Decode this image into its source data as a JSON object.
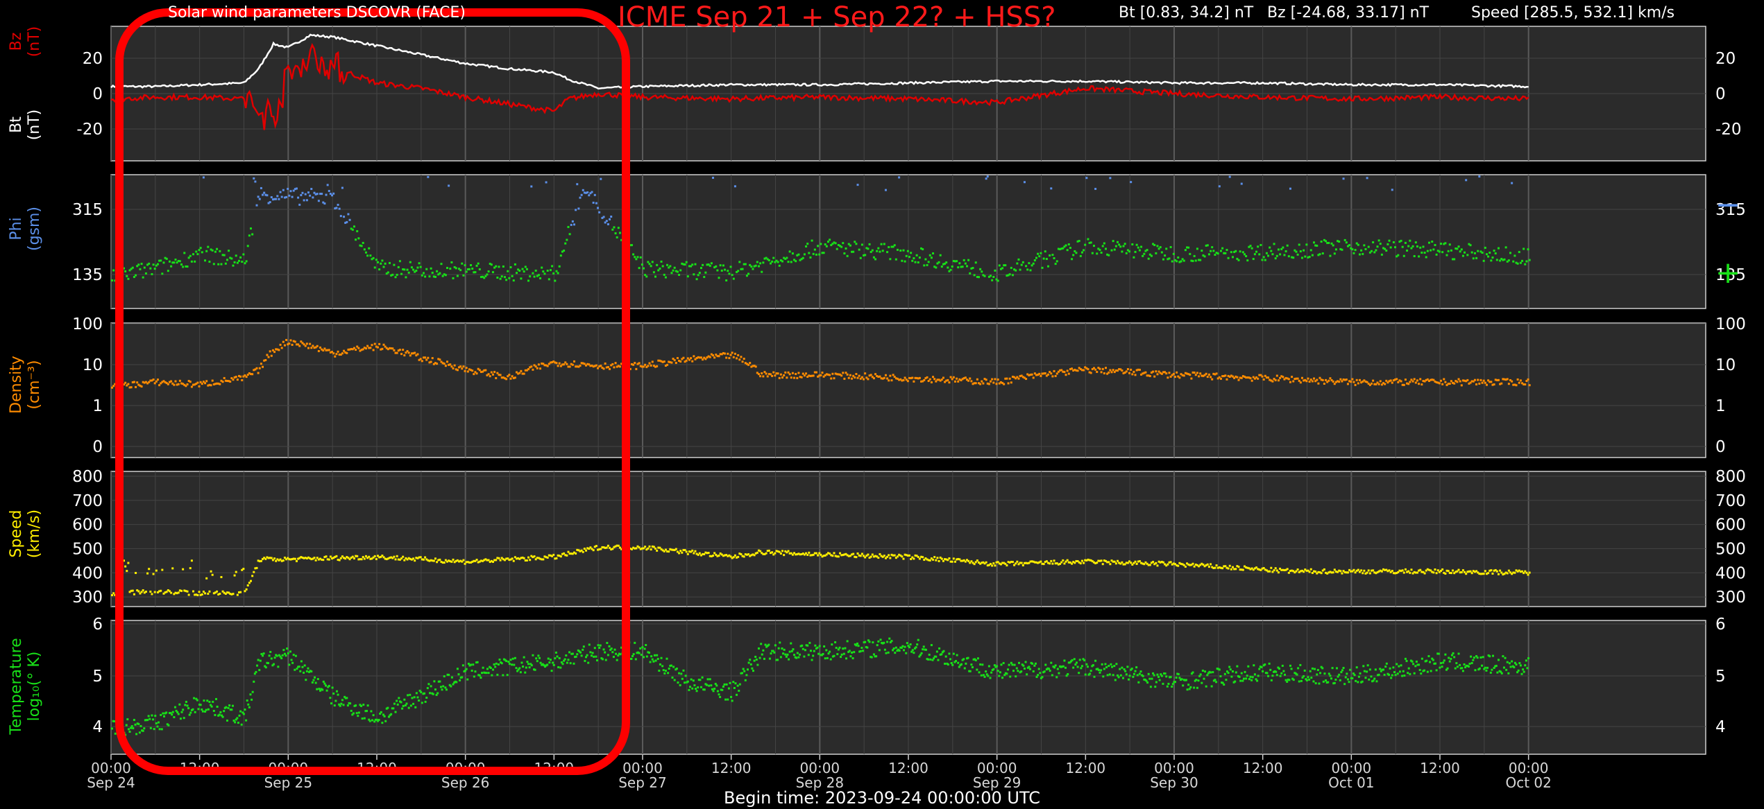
{
  "header": {
    "title": "Solar wind parameters DSCOVR (FACE)",
    "annotation": "ICME Sep 21 + Sep 22? + HSS?",
    "bt_range": "Bt [0.83, 34.2] nT",
    "bz_range": "Bz [-24.68, 33.17] nT",
    "speed_range": "Speed [285.5, 532.1] km/s",
    "begin_time": "Begin time: 2023-09-24 00:00:00 UTC"
  },
  "colors": {
    "background": "#000000",
    "panel": "#2b2b2b",
    "grid": "#444444",
    "bt": "#ffffff",
    "bz": "#e00000",
    "phi_minus": "#5b8fe8",
    "phi_plus": "#18e018",
    "density": "#ff8c00",
    "speed": "#ffee00",
    "temperature": "#18e018",
    "highlight_box": "#ff0000"
  },
  "x_axis": {
    "ticks": [
      {
        "time": "00:00",
        "day": "Sep 24"
      },
      {
        "time": "12:00",
        "day": ""
      },
      {
        "time": "00:00",
        "day": "Sep 25"
      },
      {
        "time": "12:00",
        "day": ""
      },
      {
        "time": "00:00",
        "day": "Sep 26"
      },
      {
        "time": "12:00",
        "day": ""
      },
      {
        "time": "00:00",
        "day": "Sep 27"
      },
      {
        "time": "12:00",
        "day": ""
      },
      {
        "time": "00:00",
        "day": "Sep 28"
      },
      {
        "time": "12:00",
        "day": ""
      },
      {
        "time": "00:00",
        "day": "Sep 29"
      },
      {
        "time": "12:00",
        "day": ""
      },
      {
        "time": "00:00",
        "day": "Sep 30"
      },
      {
        "time": "12:00",
        "day": ""
      },
      {
        "time": "00:00",
        "day": "Oct 01"
      },
      {
        "time": "12:00",
        "day": ""
      },
      {
        "time": "00:00",
        "day": "Oct 02"
      }
    ]
  },
  "chart_data": [
    {
      "type": "line",
      "panel": "magnetic field",
      "ylabel_top": "Bz\n(nT)",
      "ylabel_bottom": "Bt\n(nT)",
      "yticks": [
        "20",
        "0",
        "-20"
      ],
      "ylim": [
        -38,
        38
      ],
      "x_hours": [
        0,
        6,
        12,
        18,
        20,
        22,
        24,
        27,
        30,
        36,
        42,
        48,
        54,
        60,
        62,
        66,
        72,
        84,
        96,
        108,
        120,
        132,
        144,
        156,
        168,
        180,
        192
      ],
      "series": [
        {
          "name": "Bt",
          "values": [
            4,
            4,
            5,
            6,
            14,
            28,
            26,
            33,
            32,
            27,
            22,
            17,
            14,
            12,
            8,
            3,
            4,
            5,
            5,
            6,
            7,
            7,
            6,
            6,
            5,
            5,
            4
          ]
        },
        {
          "name": "Bz",
          "values": [
            -3,
            -2,
            -2,
            -3,
            -10,
            -12,
            10,
            22,
            15,
            6,
            3,
            -2,
            -6,
            -10,
            -3,
            0,
            -2,
            -3,
            -2,
            -3,
            -5,
            3,
            0,
            -2,
            -3,
            -2,
            -3
          ]
        }
      ]
    },
    {
      "type": "scatter",
      "panel": "phi",
      "ylabel": "Phi\n(gsm)",
      "yticks": [
        "315",
        "135"
      ],
      "legend": [
        "−",
        "+"
      ],
      "x_hours": [
        0,
        6,
        12,
        18,
        20,
        24,
        30,
        36,
        48,
        60,
        64,
        72,
        84,
        96,
        108,
        120,
        132,
        144,
        156,
        168,
        180,
        192
      ],
      "series": [
        {
          "name": "phi",
          "values": [
            90,
            110,
            150,
            130,
            310,
            305,
            300,
            110,
            105,
            95,
            330,
            110,
            100,
            170,
            150,
            95,
            170,
            150,
            155,
            170,
            160,
            140
          ]
        }
      ]
    },
    {
      "type": "scatter",
      "panel": "density",
      "ylabel": "Density\n(cm⁻³)",
      "yticks": [
        "100",
        "10",
        "1",
        "0"
      ],
      "ylim": [
        0,
        100
      ],
      "x_hours": [
        0,
        6,
        12,
        18,
        20,
        24,
        30,
        36,
        42,
        48,
        54,
        60,
        66,
        72,
        84,
        88,
        96,
        108,
        120,
        132,
        144,
        156,
        168,
        180,
        192
      ],
      "series": [
        {
          "name": "density",
          "values": [
            3,
            4,
            3.5,
            5,
            8,
            40,
            20,
            30,
            15,
            8,
            5,
            12,
            10,
            10,
            18,
            6,
            6,
            5,
            4,
            8,
            6,
            5,
            4,
            4,
            4
          ]
        }
      ]
    },
    {
      "type": "scatter",
      "panel": "speed",
      "ylabel": "Speed\n(km/s)",
      "yticks": [
        "800",
        "700",
        "600",
        "500",
        "400",
        "300"
      ],
      "ylim": [
        260,
        820
      ],
      "x_hours": [
        0,
        6,
        12,
        18,
        20,
        24,
        36,
        48,
        60,
        66,
        72,
        84,
        88,
        96,
        108,
        120,
        132,
        144,
        160,
        168,
        180,
        192
      ],
      "series": [
        {
          "name": "speed",
          "values": [
            320,
            325,
            320,
            320,
            460,
            460,
            470,
            450,
            470,
            510,
            510,
            470,
            490,
            480,
            470,
            440,
            450,
            440,
            410,
            410,
            410,
            405
          ]
        }
      ]
    },
    {
      "type": "scatter",
      "panel": "temperature",
      "ylabel": "Temperature\nlog₁₀(° K)",
      "yticks": [
        "6",
        "5",
        "4"
      ],
      "ylim": [
        3.5,
        6
      ],
      "x_hours": [
        0,
        6,
        12,
        18,
        20,
        24,
        30,
        36,
        48,
        60,
        66,
        72,
        78,
        84,
        88,
        96,
        108,
        120,
        132,
        144,
        156,
        168,
        180,
        192
      ],
      "series": [
        {
          "name": "temperature",
          "values": [
            4.0,
            4.1,
            4.5,
            4.2,
            5.3,
            5.4,
            4.6,
            4.2,
            5.1,
            5.3,
            5.5,
            5.5,
            4.9,
            4.7,
            5.5,
            5.5,
            5.6,
            5.1,
            5.2,
            4.9,
            5.1,
            5.0,
            5.3,
            5.2
          ]
        }
      ]
    }
  ]
}
